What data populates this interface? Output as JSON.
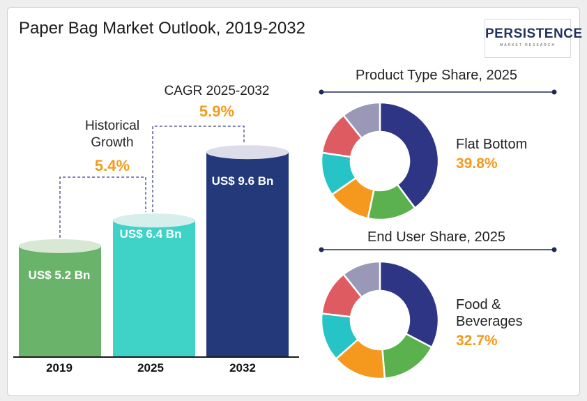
{
  "title": "Paper Bag Market Outlook, 2019-2032",
  "logo": {
    "main": "PERSISTENCE",
    "sub": "MARKET RESEARCH"
  },
  "annotations": {
    "historical_label": "Historical Growth",
    "historical_value": "5.4%",
    "cagr_label": "CAGR 2025-2032",
    "cagr_value": "5.9%"
  },
  "colors": {
    "bar_2019": "#6ab36a",
    "bar_2025": "#3fd3c8",
    "bar_2032": "#23397a",
    "accent": "#f49a1c"
  },
  "chart_data": [
    {
      "type": "bar",
      "categories": [
        "2019",
        "2025",
        "2032"
      ],
      "values": [
        5.2,
        6.4,
        9.6
      ],
      "value_labels": [
        "US$ 5.2 Bn",
        "US$ 6.4 Bn",
        "US$ 9.6 Bn"
      ],
      "title": "",
      "xlabel": "",
      "ylabel": ""
    },
    {
      "type": "pie",
      "title": "Product Type Share, 2025",
      "highlight_label": "Flat Bottom",
      "highlight_value": "39.8%",
      "values": [
        39.8,
        13.5,
        12.0,
        12.0,
        12.0,
        10.7
      ],
      "colors": [
        "#2f3585",
        "#5ab14e",
        "#f4991d",
        "#26c4c6",
        "#df5b62",
        "#9999b7"
      ]
    },
    {
      "type": "pie",
      "title": "End User Share, 2025",
      "highlight_label": "Food & Beverages",
      "highlight_value": "32.7%",
      "values": [
        32.7,
        16.0,
        14.8,
        13.3,
        12.5,
        10.7
      ],
      "colors": [
        "#2f3585",
        "#5ab14e",
        "#f4991d",
        "#26c4c6",
        "#df5b62",
        "#9999b7"
      ]
    }
  ]
}
